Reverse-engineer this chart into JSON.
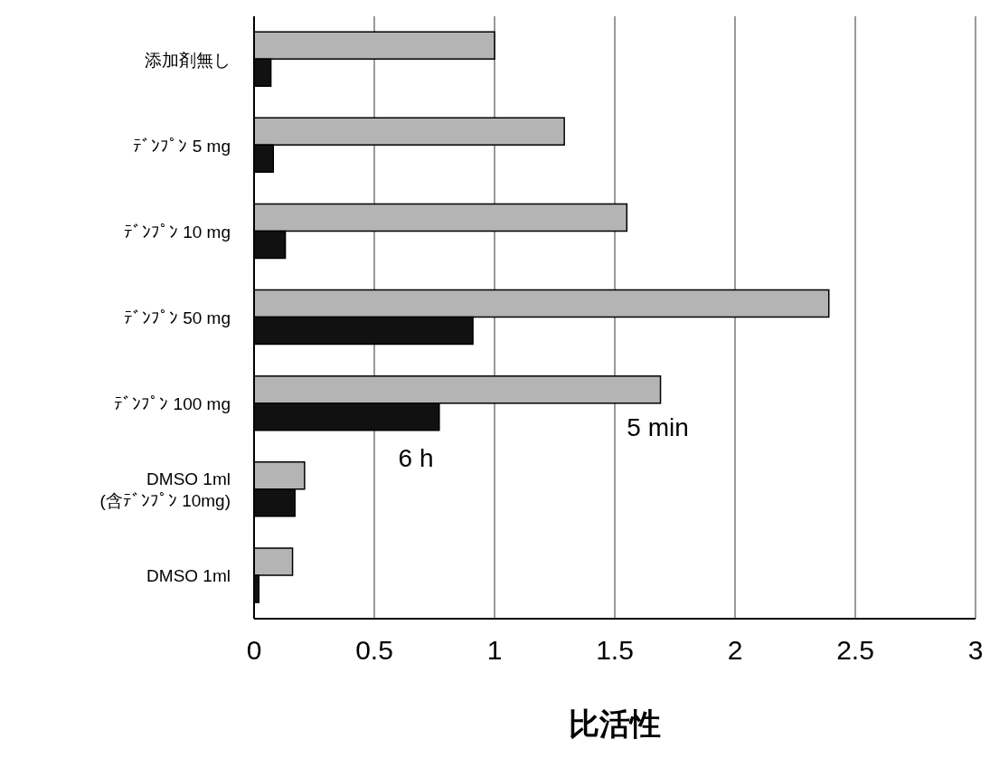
{
  "chart_data": {
    "type": "bar",
    "orientation": "horizontal",
    "xlabel": "比活性",
    "categories": [
      "添加剤無し",
      "ﾃﾞﾝﾌﾟﾝ 5 mg",
      "ﾃﾞﾝﾌﾟﾝ 10 mg",
      "ﾃﾞﾝﾌﾟﾝ 50 mg",
      "ﾃﾞﾝﾌﾟﾝ 100 mg",
      "DMSO 1ml\n(含ﾃﾞﾝﾌﾟﾝ 10mg)",
      "DMSO 1ml"
    ],
    "series": [
      {
        "name": "5 min",
        "color": "#b4b4b4",
        "values": [
          1.0,
          1.29,
          1.55,
          2.39,
          1.69,
          0.21,
          0.16
        ]
      },
      {
        "name": "6 h",
        "color": "#111111",
        "values": [
          0.07,
          0.08,
          0.13,
          0.91,
          0.77,
          0.17,
          0.02
        ]
      }
    ],
    "xlim": [
      0,
      3
    ],
    "xticks": [
      0,
      0.5,
      1,
      1.5,
      2,
      2.5,
      3
    ],
    "grid": "x"
  }
}
